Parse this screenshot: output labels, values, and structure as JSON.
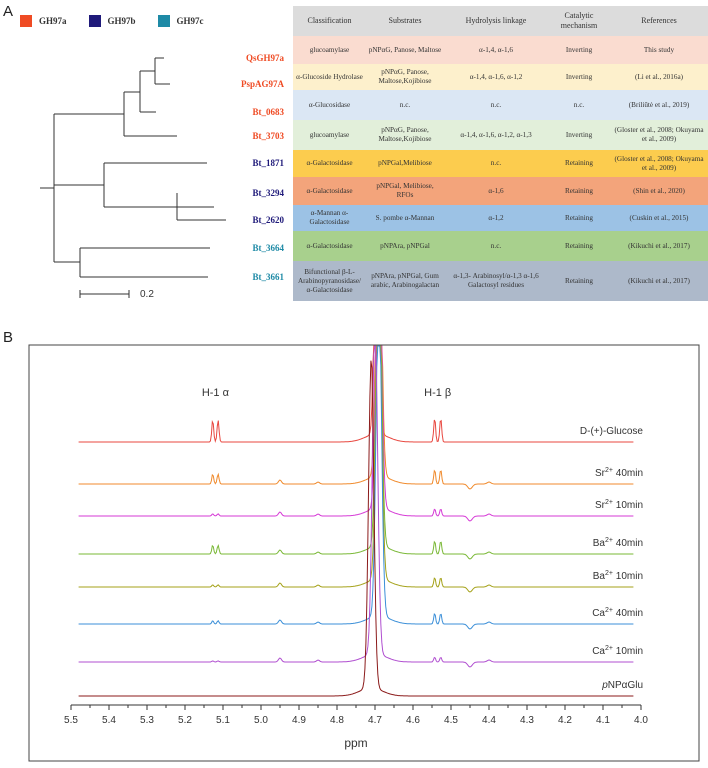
{
  "panels": {
    "a": "A",
    "b": "B"
  },
  "legend": [
    {
      "label": "GH97a",
      "color": "#ef4b24"
    },
    {
      "label": "GH97b",
      "color": "#1f1a7a"
    },
    {
      "label": "GH97c",
      "color": "#1e8aa6"
    }
  ],
  "tree": {
    "leaves": [
      {
        "name": "QsGH97a",
        "group": "GH97a"
      },
      {
        "name": "PspAG97A",
        "group": "GH97a"
      },
      {
        "name": "Bt_0683",
        "group": "GH97a"
      },
      {
        "name": "Bt_3703",
        "group": "GH97a"
      },
      {
        "name": "Bt_1871",
        "group": "GH97b"
      },
      {
        "name": "Bt_3294",
        "group": "GH97b"
      },
      {
        "name": "Bt_2620",
        "group": "GH97b"
      },
      {
        "name": "Bt_3664",
        "group": "GH97c"
      },
      {
        "name": "Bt_3661",
        "group": "GH97c"
      }
    ],
    "scale_bar_label": "0.2"
  },
  "table": {
    "headers": [
      "Classification",
      "Substrates",
      "Hydrolysis linkage",
      "Catalytic mechanism",
      "References"
    ],
    "rows": [
      {
        "bg": "#fadcd0",
        "cells": [
          "glucoamylase",
          "pNPαG, Panose, Maltose",
          "α-1,4, α-1,6",
          "Inverting",
          "This study"
        ]
      },
      {
        "bg": "#fdf0cc",
        "cells": [
          "α-Glucoside Hydrolase",
          "pNPαG, Panose, Maltose,Kojibiose",
          "α-1,4, α-1,6, α-1,2",
          "Inverting",
          "(Li et al., 2016a)"
        ]
      },
      {
        "bg": "#dbe7f4",
        "cells": [
          "α-Glucosidase",
          "n.c.",
          "n.c.",
          "n.c.",
          "(Briliūtė et al., 2019)"
        ]
      },
      {
        "bg": "#e2efda",
        "cells": [
          "glucoamylase",
          "pNPαG, Panose, Maltose,Kojibiose",
          "α-1,4, α-1,6, α-1,2, α-1,3",
          "Inverting",
          "(Gloster et al., 2008; Okuyama et al., 2009)"
        ]
      },
      {
        "bg": "#fccc4e",
        "cells": [
          "α-Galactosidase",
          "pNPGal,Melibiose",
          "n.c.",
          "Retaining",
          "(Gloster et al., 2008; Okuyama et al., 2009)"
        ]
      },
      {
        "bg": "#f3a47b",
        "cells": [
          "α-Galactosidase",
          "pNPGal, Melibiose, RFOs",
          "α-1,6",
          "Retaining",
          "(Shin et al., 2020)"
        ]
      },
      {
        "bg": "#9cc2e5",
        "cells": [
          "α-Mannan α-Galactosidase",
          "S. pombe α-Mannan",
          "α-1,2",
          "Retaining",
          "(Cuskin et al., 2015)"
        ]
      },
      {
        "bg": "#a8d08d",
        "cells": [
          "α-Galactosidase",
          "pNPAra, pNPGal",
          "n.c.",
          "Retaining",
          "(Kikuchi et al., 2017)"
        ]
      },
      {
        "bg": "#adb9ca",
        "cells": [
          "Bifunctional β-L-Arabinopyranosidase/ α-Galactosidase",
          "pNPAra, pNPGal, Gum arabic, Arabinogalactan",
          "α-1,3- Arabinosyl/α-1,3 α-1,6 Galactosyl residues",
          "Retaining",
          "(Kikuchi et al., 2017)"
        ]
      }
    ]
  },
  "chart_data": {
    "type": "line",
    "title": "",
    "xlabel": "ppm",
    "ylabel": "",
    "xlim": [
      5.5,
      4.0
    ],
    "x_ticks": [
      "5.5",
      "5.4",
      "5.3",
      "5.2",
      "5.1",
      "5.0",
      "4.9",
      "4.8",
      "4.7",
      "4.6",
      "4.5",
      "4.4",
      "4.3",
      "4.2",
      "4.1",
      "4.0"
    ],
    "annotations": [
      {
        "text": "H-1 α",
        "x": 5.12
      },
      {
        "text": "H-1 β",
        "x": 4.535
      }
    ],
    "series": [
      {
        "name": "D-(+)-Glucose",
        "color": "#e8473f",
        "alpha_peak": 1.0,
        "beta_peak": 1.0,
        "main_peak_x": 4.695
      },
      {
        "name": "Sr2+ 40min",
        "color": "#f08a2c",
        "alpha_peak": 0.45,
        "beta_peak": 0.6,
        "main_peak_x": 4.69
      },
      {
        "name": "Sr2+ 10min",
        "color": "#d63ad6",
        "alpha_peak": 0.1,
        "beta_peak": 0.3,
        "main_peak_x": 4.69
      },
      {
        "name": "Ba2+ 40min",
        "color": "#7ab836",
        "alpha_peak": 0.4,
        "beta_peak": 0.55,
        "main_peak_x": 4.69
      },
      {
        "name": "Ba2+ 10min",
        "color": "#a5a21a",
        "alpha_peak": 0.1,
        "beta_peak": 0.4,
        "main_peak_x": 4.69
      },
      {
        "name": "Ca2+ 40min",
        "color": "#3b8fd8",
        "alpha_peak": 0.15,
        "beta_peak": 0.45,
        "main_peak_x": 4.69
      },
      {
        "name": "Ca2+ 10min",
        "color": "#b04fd0",
        "alpha_peak": 0.05,
        "beta_peak": 0.2,
        "main_peak_x": 4.7
      },
      {
        "name": "pNPαGlu",
        "color": "#8b1a1a",
        "alpha_peak": 0.0,
        "beta_peak": 0.0,
        "main_peak_x": 4.71
      }
    ]
  }
}
